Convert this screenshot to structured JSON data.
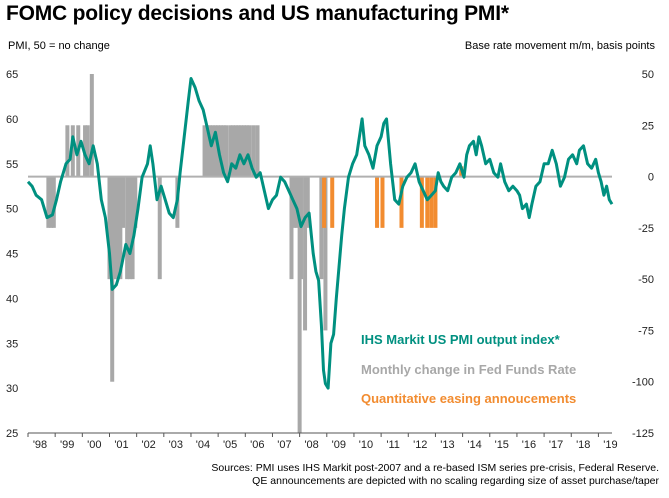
{
  "title": "FOMC policy decisions and US manufacturing PMI*",
  "left_axis_label": "PMI, 50 = no change",
  "right_axis_label": "Base rate movement m/m, basis points",
  "source_lines": [
    "Sources: PMI uses IHS Markit post-2007 and a re-based ISM series pre-crisis, Federal Reserve.",
    "QE announcements are depicted with no scaling regarding size of asset purchase/taper"
  ],
  "colors": {
    "pmi": "#009080",
    "fed": "#a8a8a8",
    "qe": "#f28c30",
    "zero_line": "#b0b0b0"
  },
  "chart_data": {
    "type": "bar-line combo",
    "x_tick_labels": [
      "'98",
      "'99",
      "'00",
      "'01",
      "'02",
      "'03",
      "'04",
      "'05",
      "'06",
      "'07",
      "'08",
      "'09",
      "'10",
      "'11",
      "'12",
      "'13",
      "'14",
      "'15",
      "'16",
      "'17",
      "'18",
      "'19"
    ],
    "x_range": [
      1998.0,
      2019.5
    ],
    "left_axis": {
      "ylim": [
        25,
        65
      ],
      "ticks": [
        25,
        30,
        35,
        40,
        45,
        50,
        55,
        60,
        65
      ]
    },
    "right_axis": {
      "ylim": [
        -125,
        50
      ],
      "ticks": [
        50,
        25,
        0,
        -25,
        -50,
        -75,
        -100,
        -125
      ]
    },
    "legend": [
      {
        "label": "IHS Markit US PMI  output index*",
        "color": "#009080"
      },
      {
        "label": "Monthly change in Fed Funds Rate",
        "color": "#a8a8a8"
      },
      {
        "label": "Quantitative easing annoucements",
        "color": "#f28c30"
      }
    ],
    "series": [
      {
        "name": "IHS Markit US PMI  output index*",
        "axis": "left",
        "points": [
          [
            1998.0,
            53.0
          ],
          [
            1998.15,
            52.5
          ],
          [
            1998.3,
            51.5
          ],
          [
            1998.5,
            51.0
          ],
          [
            1998.7,
            49.0
          ],
          [
            1998.9,
            49.3
          ],
          [
            1999.05,
            51.0
          ],
          [
            1999.2,
            53.0
          ],
          [
            1999.4,
            55.0
          ],
          [
            1999.55,
            55.5
          ],
          [
            1999.65,
            58.0
          ],
          [
            1999.8,
            56.0
          ],
          [
            1999.95,
            57.5
          ],
          [
            2000.1,
            56.0
          ],
          [
            2000.25,
            55.0
          ],
          [
            2000.4,
            57.0
          ],
          [
            2000.55,
            55.0
          ],
          [
            2000.7,
            51.0
          ],
          [
            2000.85,
            49.0
          ],
          [
            2001.0,
            45.0
          ],
          [
            2001.1,
            41.0
          ],
          [
            2001.25,
            41.5
          ],
          [
            2001.4,
            43.0
          ],
          [
            2001.6,
            46.0
          ],
          [
            2001.75,
            45.0
          ],
          [
            2001.9,
            47.0
          ],
          [
            2002.05,
            50.0
          ],
          [
            2002.2,
            53.5
          ],
          [
            2002.4,
            55.0
          ],
          [
            2002.5,
            57.0
          ],
          [
            2002.6,
            55.0
          ],
          [
            2002.75,
            51.0
          ],
          [
            2002.9,
            52.5
          ],
          [
            2003.05,
            51.0
          ],
          [
            2003.2,
            49.5
          ],
          [
            2003.35,
            49.0
          ],
          [
            2003.5,
            51.0
          ],
          [
            2003.6,
            54.0
          ],
          [
            2003.75,
            58.0
          ],
          [
            2003.9,
            62.0
          ],
          [
            2004.0,
            64.5
          ],
          [
            2004.15,
            63.5
          ],
          [
            2004.3,
            62.0
          ],
          [
            2004.45,
            61.0
          ],
          [
            2004.6,
            59.0
          ],
          [
            2004.75,
            57.0
          ],
          [
            2004.9,
            58.5
          ],
          [
            2005.05,
            56.0
          ],
          [
            2005.2,
            54.0
          ],
          [
            2005.35,
            53.0
          ],
          [
            2005.5,
            55.0
          ],
          [
            2005.65,
            54.5
          ],
          [
            2005.8,
            56.0
          ],
          [
            2005.95,
            55.0
          ],
          [
            2006.1,
            56.0
          ],
          [
            2006.25,
            54.5
          ],
          [
            2006.4,
            53.5
          ],
          [
            2006.55,
            54.0
          ],
          [
            2006.7,
            52.0
          ],
          [
            2006.85,
            50.0
          ],
          [
            2007.0,
            51.0
          ],
          [
            2007.15,
            51.5
          ],
          [
            2007.3,
            53.5
          ],
          [
            2007.45,
            53.0
          ],
          [
            2007.6,
            52.0
          ],
          [
            2007.75,
            51.0
          ],
          [
            2007.9,
            50.0
          ],
          [
            2008.05,
            48.0
          ],
          [
            2008.2,
            49.0
          ],
          [
            2008.35,
            49.5
          ],
          [
            2008.5,
            45.0
          ],
          [
            2008.6,
            43.0
          ],
          [
            2008.7,
            42.0
          ],
          [
            2008.8,
            37.0
          ],
          [
            2008.88,
            32.0
          ],
          [
            2008.95,
            30.5
          ],
          [
            2009.05,
            30.0
          ],
          [
            2009.15,
            35.0
          ],
          [
            2009.25,
            36.0
          ],
          [
            2009.35,
            40.0
          ],
          [
            2009.45,
            43.5
          ],
          [
            2009.55,
            47.0
          ],
          [
            2009.65,
            50.0
          ],
          [
            2009.8,
            53.5
          ],
          [
            2009.95,
            55.0
          ],
          [
            2010.1,
            56.0
          ],
          [
            2010.2,
            58.0
          ],
          [
            2010.3,
            60.0
          ],
          [
            2010.4,
            57.0
          ],
          [
            2010.55,
            56.0
          ],
          [
            2010.7,
            54.5
          ],
          [
            2010.85,
            57.0
          ],
          [
            2011.0,
            58.0
          ],
          [
            2011.1,
            59.5
          ],
          [
            2011.2,
            60.0
          ],
          [
            2011.35,
            55.0
          ],
          [
            2011.5,
            51.0
          ],
          [
            2011.65,
            50.5
          ],
          [
            2011.8,
            52.5
          ],
          [
            2011.95,
            53.5
          ],
          [
            2012.1,
            54.0
          ],
          [
            2012.25,
            55.0
          ],
          [
            2012.4,
            53.0
          ],
          [
            2012.55,
            52.0
          ],
          [
            2012.7,
            51.0
          ],
          [
            2012.85,
            51.5
          ],
          [
            2013.0,
            52.0
          ],
          [
            2013.1,
            54.0
          ],
          [
            2013.2,
            53.0
          ],
          [
            2013.3,
            52.5
          ],
          [
            2013.45,
            52.0
          ],
          [
            2013.6,
            53.5
          ],
          [
            2013.75,
            54.0
          ],
          [
            2013.9,
            55.0
          ],
          [
            2014.05,
            53.5
          ],
          [
            2014.15,
            56.0
          ],
          [
            2014.25,
            57.0
          ],
          [
            2014.4,
            57.5
          ],
          [
            2014.5,
            56.0
          ],
          [
            2014.6,
            58.0
          ],
          [
            2014.7,
            57.0
          ],
          [
            2014.85,
            55.0
          ],
          [
            2015.0,
            55.5
          ],
          [
            2015.15,
            54.0
          ],
          [
            2015.3,
            53.5
          ],
          [
            2015.4,
            55.0
          ],
          [
            2015.55,
            53.0
          ],
          [
            2015.7,
            52.0
          ],
          [
            2015.85,
            52.5
          ],
          [
            2016.0,
            52.0
          ],
          [
            2016.1,
            51.5
          ],
          [
            2016.2,
            50.0
          ],
          [
            2016.35,
            50.5
          ],
          [
            2016.45,
            49.0
          ],
          [
            2016.55,
            50.5
          ],
          [
            2016.7,
            52.5
          ],
          [
            2016.85,
            53.0
          ],
          [
            2017.0,
            55.0
          ],
          [
            2017.15,
            55.0
          ],
          [
            2017.3,
            56.5
          ],
          [
            2017.45,
            55.0
          ],
          [
            2017.6,
            52.5
          ],
          [
            2017.75,
            53.5
          ],
          [
            2017.9,
            55.5
          ],
          [
            2018.05,
            56.0
          ],
          [
            2018.2,
            55.0
          ],
          [
            2018.3,
            56.5
          ],
          [
            2018.45,
            57.0
          ],
          [
            2018.6,
            55.0
          ],
          [
            2018.75,
            54.5
          ],
          [
            2018.9,
            55.5
          ],
          [
            2019.0,
            54.0
          ],
          [
            2019.1,
            53.0
          ],
          [
            2019.2,
            51.5
          ],
          [
            2019.3,
            52.5
          ],
          [
            2019.4,
            51.0
          ],
          [
            2019.5,
            50.5
          ]
        ]
      },
      {
        "name": "Monthly change in Fed Funds Rate",
        "axis": "right",
        "bars": [
          [
            1998.75,
            -25
          ],
          [
            1998.85,
            -25
          ],
          [
            1998.95,
            -25
          ],
          [
            1999.45,
            25
          ],
          [
            1999.65,
            25
          ],
          [
            1999.85,
            25
          ],
          [
            2000.1,
            25
          ],
          [
            2000.2,
            25
          ],
          [
            2000.35,
            50
          ],
          [
            2001.0,
            -50
          ],
          [
            2001.1,
            -100
          ],
          [
            2001.2,
            -50
          ],
          [
            2001.3,
            -50
          ],
          [
            2001.4,
            -50
          ],
          [
            2001.5,
            -25
          ],
          [
            2001.65,
            -50
          ],
          [
            2001.75,
            -50
          ],
          [
            2001.85,
            -50
          ],
          [
            2001.95,
            -25
          ],
          [
            2002.85,
            -50
          ],
          [
            2003.5,
            -25
          ],
          [
            2004.5,
            25
          ],
          [
            2004.6,
            25
          ],
          [
            2004.7,
            25
          ],
          [
            2004.8,
            25
          ],
          [
            2004.9,
            25
          ],
          [
            2005.0,
            25
          ],
          [
            2005.1,
            25
          ],
          [
            2005.2,
            25
          ],
          [
            2005.3,
            25
          ],
          [
            2005.45,
            25
          ],
          [
            2005.55,
            25
          ],
          [
            2005.65,
            25
          ],
          [
            2005.75,
            25
          ],
          [
            2005.85,
            25
          ],
          [
            2005.95,
            25
          ],
          [
            2006.05,
            25
          ],
          [
            2006.15,
            25
          ],
          [
            2006.3,
            25
          ],
          [
            2006.45,
            25
          ],
          [
            2007.7,
            -50
          ],
          [
            2007.8,
            -25
          ],
          [
            2007.9,
            -25
          ],
          [
            2008.0,
            -125
          ],
          [
            2008.05,
            -50
          ],
          [
            2008.2,
            -75
          ],
          [
            2008.3,
            -25
          ],
          [
            2008.8,
            -50
          ],
          [
            2008.95,
            -75
          ]
        ]
      },
      {
        "name": "Quantitative easing annoucements",
        "axis": "right",
        "bars": [
          [
            2008.9,
            -25
          ],
          [
            2009.2,
            -25
          ],
          [
            2010.85,
            -25
          ],
          [
            2011.05,
            -25
          ],
          [
            2011.75,
            -25
          ],
          [
            2012.5,
            -25
          ],
          [
            2012.7,
            -25
          ],
          [
            2012.85,
            -25
          ],
          [
            2013.0,
            -25
          ],
          [
            2013.95,
            5
          ]
        ]
      }
    ]
  }
}
